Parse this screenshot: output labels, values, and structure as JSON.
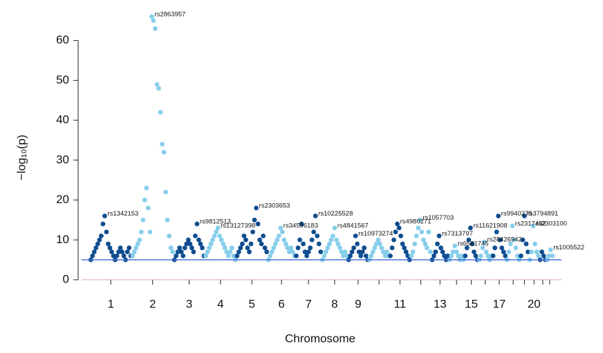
{
  "chart_data": {
    "type": "manhattan",
    "x_label": "Chromosome",
    "y_label": "−log₁₀(p)",
    "ylim": [
      0,
      66
    ],
    "yticks": [
      0,
      10,
      20,
      30,
      40,
      50,
      60
    ],
    "threshold": 5,
    "threshold_color": "#4a72d8",
    "colors": [
      "#0e4d8f",
      "#87ceeb"
    ],
    "categories": [
      "1",
      "2",
      "3",
      "4",
      "5",
      "6",
      "7",
      "8",
      "9",
      null,
      "11",
      null,
      "13",
      null,
      "15",
      null,
      "17",
      null,
      null,
      "20",
      null,
      null
    ],
    "values": [
      [
        5,
        6,
        7,
        8,
        9,
        10,
        11,
        14,
        16,
        12,
        9,
        8,
        7,
        6,
        5,
        6,
        7,
        8,
        7,
        6,
        5,
        7,
        8,
        6
      ],
      [
        6,
        7,
        8,
        9,
        10,
        12,
        15,
        20,
        23,
        18,
        12,
        66,
        65,
        63,
        49,
        48,
        42,
        34,
        32,
        22,
        15,
        11,
        8,
        7
      ],
      [
        5,
        6,
        7,
        8,
        7,
        6,
        8,
        9,
        10,
        9,
        8,
        7,
        11,
        14,
        10,
        9,
        8,
        6
      ],
      [
        6,
        7,
        8,
        9,
        10,
        11,
        12,
        13,
        11,
        10,
        9,
        8,
        7,
        6,
        7,
        8,
        6,
        5
      ],
      [
        6,
        7,
        8,
        9,
        11,
        10,
        8,
        7,
        9,
        12,
        15,
        18,
        14,
        10,
        9,
        11,
        8,
        7
      ],
      [
        5,
        6,
        7,
        8,
        9,
        10,
        11,
        13,
        12,
        10,
        9,
        8,
        7,
        8,
        7,
        6
      ],
      [
        6,
        8,
        10,
        14,
        9,
        7,
        6,
        7,
        8,
        10,
        12,
        16,
        11,
        9,
        7
      ],
      [
        5,
        6,
        7,
        8,
        9,
        10,
        11,
        13,
        10,
        9,
        8,
        7,
        6,
        7,
        6
      ],
      [
        5,
        6,
        7,
        8,
        11,
        9,
        7,
        6,
        7,
        8,
        6,
        5
      ],
      [
        5,
        6,
        7,
        8,
        9,
        10,
        9,
        8,
        7,
        6,
        7,
        6
      ],
      [
        6,
        8,
        10,
        12,
        14,
        13,
        11,
        9,
        8,
        7,
        6,
        5
      ],
      [
        6,
        7,
        9,
        11,
        13,
        15,
        12,
        10,
        9,
        8,
        12,
        7
      ],
      [
        5,
        6,
        7,
        9,
        11,
        8,
        7,
        6,
        5,
        6
      ],
      [
        5,
        6,
        7,
        8.5,
        7,
        6,
        5,
        6,
        5
      ],
      [
        6,
        8,
        10,
        13,
        9,
        7,
        6,
        5
      ],
      [
        5,
        6,
        8,
        9.5,
        7,
        6,
        5,
        6
      ],
      [
        6,
        8,
        12,
        16,
        10,
        8,
        7,
        6
      ],
      [
        5,
        7,
        9,
        13.5,
        10,
        8,
        6,
        5
      ],
      [
        6,
        10,
        16,
        9,
        7
      ],
      [
        5,
        7,
        13.5,
        9,
        7,
        6
      ],
      [
        5,
        7,
        6,
        5
      ],
      [
        5,
        6,
        7.5,
        6
      ]
    ],
    "annotations": [
      "rs1342153",
      "rs2863957",
      "rs9812513",
      "rs13127398",
      "rs2303653",
      "rs34596183",
      "rs10225528",
      "rs4841567",
      "rs10973274",
      null,
      "rs4980271",
      "rs1057703",
      "rs7313797",
      "rs6561745",
      "rs11621908",
      "rs28426942",
      "rs9940275",
      "rs2317432",
      "rs3794891",
      "rs2303100",
      null,
      "rs1005522"
    ]
  }
}
